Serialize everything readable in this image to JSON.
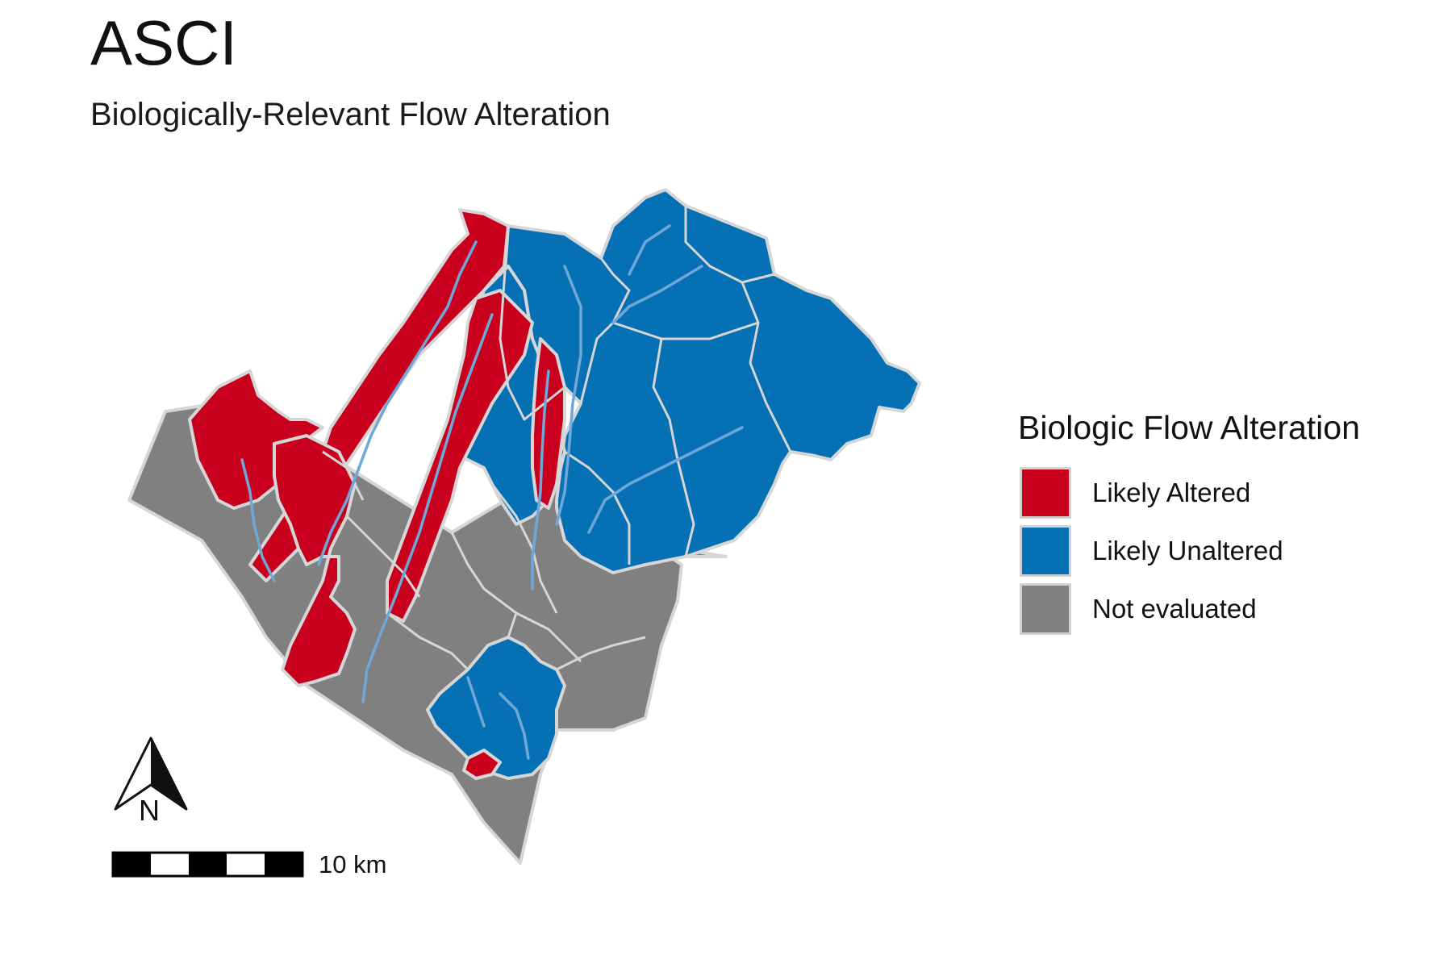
{
  "title": "ASCI",
  "subtitle": "Biologically-Relevant Flow Alteration",
  "legend": {
    "title": "Biologic Flow Alteration",
    "items": [
      {
        "label": "Likely Altered",
        "color": "#c8001e"
      },
      {
        "label": "Likely Unaltered",
        "color": "#0670b4"
      },
      {
        "label": "Not evaluated",
        "color": "#808080"
      }
    ]
  },
  "colors": {
    "altered": "#c8001e",
    "unaltered": "#0670b4",
    "not_evaluated": "#808080",
    "boundary": "#d6d6d6",
    "stream": "#6fa8d8"
  },
  "north_arrow": {
    "label": "N"
  },
  "scale_bar": {
    "label": "10 km"
  }
}
